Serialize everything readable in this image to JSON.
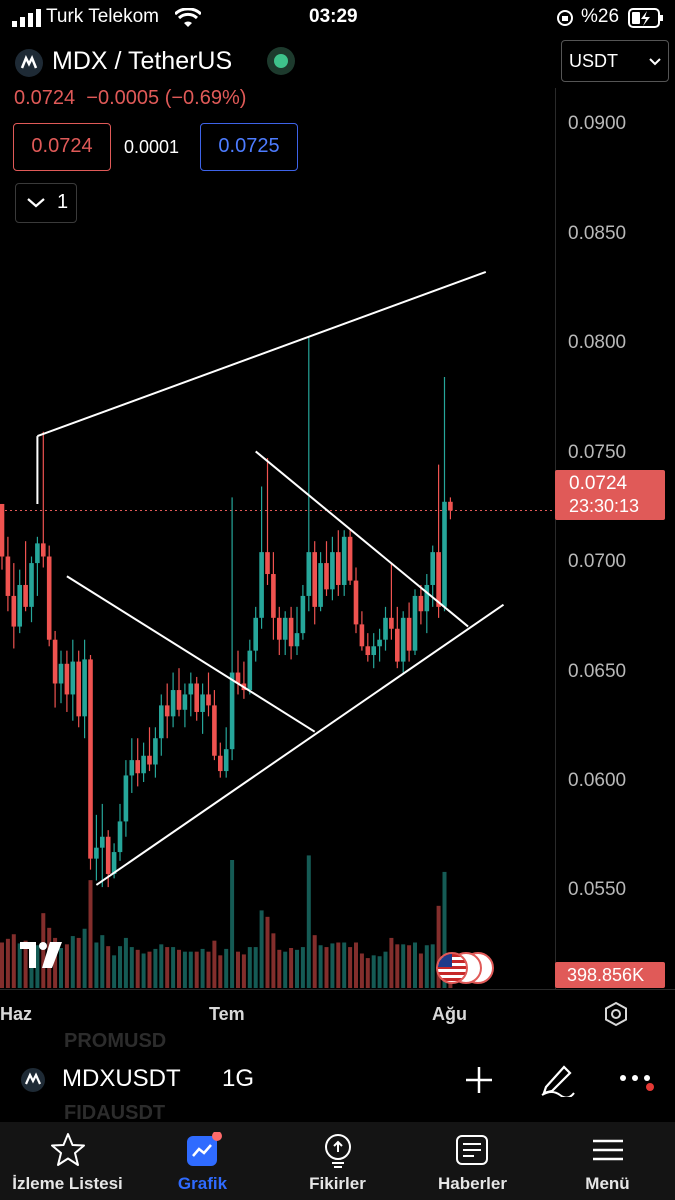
{
  "status": {
    "carrier": "Turk Telekom",
    "time": "03:29",
    "battery": "%26"
  },
  "header": {
    "pair": "MDX / TetherUS",
    "currency": "USDT",
    "last_price": "0.0724",
    "change": "−0.0005 (−0.69%)",
    "bid": "0.0724",
    "spread": "0.0001",
    "ask": "0.0725",
    "indicator_count": "1"
  },
  "chart": {
    "y_ticks": [
      "0.0900",
      "0.0850",
      "0.0800",
      "0.0750",
      "0.0700",
      "0.0650",
      "0.0600",
      "0.0550"
    ],
    "price_tag": "0.0724",
    "countdown": "23:30:13",
    "volume_tag": "398.856K",
    "x_ticks": [
      "Haz",
      "Tem",
      "Ağu"
    ],
    "colors": {
      "up": "#26a69a",
      "down": "#ef5350",
      "lines": "#ffffff"
    }
  },
  "chart_data": {
    "type": "candlestick",
    "symbol": "MDXUSDT",
    "interval": "1G",
    "ylim": [
      0.0505,
      0.0917
    ],
    "candles": [
      [
        0.0727,
        0.0727,
        0.0697,
        0.0703
      ],
      [
        0.0703,
        0.0712,
        0.0678,
        0.0685
      ],
      [
        0.0685,
        0.07,
        0.0661,
        0.0671
      ],
      [
        0.0671,
        0.0697,
        0.0668,
        0.069
      ],
      [
        0.069,
        0.071,
        0.0678,
        0.068
      ],
      [
        0.068,
        0.0703,
        0.0673,
        0.07
      ],
      [
        0.07,
        0.0712,
        0.0685,
        0.0709
      ],
      [
        0.0709,
        0.076,
        0.0698,
        0.0703
      ],
      [
        0.0703,
        0.0708,
        0.0662,
        0.0665
      ],
      [
        0.0665,
        0.0669,
        0.0634,
        0.0645
      ],
      [
        0.0645,
        0.066,
        0.0636,
        0.0654
      ],
      [
        0.0654,
        0.066,
        0.0632,
        0.064
      ],
      [
        0.064,
        0.0665,
        0.0628,
        0.0655
      ],
      [
        0.0655,
        0.066,
        0.0625,
        0.063
      ],
      [
        0.063,
        0.0665,
        0.062,
        0.0656
      ],
      [
        0.0656,
        0.0658,
        0.056,
        0.0565
      ],
      [
        0.0565,
        0.0585,
        0.0555,
        0.057
      ],
      [
        0.057,
        0.059,
        0.0552,
        0.0575
      ],
      [
        0.0575,
        0.0578,
        0.0552,
        0.0558
      ],
      [
        0.0558,
        0.0572,
        0.0556,
        0.0568
      ],
      [
        0.0568,
        0.059,
        0.0564,
        0.0582
      ],
      [
        0.0582,
        0.061,
        0.0575,
        0.0603
      ],
      [
        0.0603,
        0.062,
        0.0595,
        0.061
      ],
      [
        0.061,
        0.062,
        0.0598,
        0.0604
      ],
      [
        0.0604,
        0.0618,
        0.06,
        0.0612
      ],
      [
        0.0612,
        0.0625,
        0.0605,
        0.0608
      ],
      [
        0.0608,
        0.0625,
        0.0602,
        0.062
      ],
      [
        0.062,
        0.064,
        0.0612,
        0.0635
      ],
      [
        0.0635,
        0.0645,
        0.062,
        0.063
      ],
      [
        0.063,
        0.065,
        0.0625,
        0.0642
      ],
      [
        0.0642,
        0.0652,
        0.063,
        0.0633
      ],
      [
        0.0633,
        0.0645,
        0.0625,
        0.064
      ],
      [
        0.064,
        0.065,
        0.063,
        0.0645
      ],
      [
        0.0645,
        0.0648,
        0.0628,
        0.0632
      ],
      [
        0.0632,
        0.0645,
        0.0622,
        0.064
      ],
      [
        0.064,
        0.065,
        0.063,
        0.0635
      ],
      [
        0.0635,
        0.0642,
        0.061,
        0.0612
      ],
      [
        0.0612,
        0.0618,
        0.0602,
        0.0605
      ],
      [
        0.0605,
        0.0625,
        0.0602,
        0.0615
      ],
      [
        0.0615,
        0.073,
        0.061,
        0.065
      ],
      [
        0.065,
        0.066,
        0.064,
        0.0645
      ],
      [
        0.0645,
        0.0655,
        0.0638,
        0.0642
      ],
      [
        0.0642,
        0.0665,
        0.064,
        0.066
      ],
      [
        0.066,
        0.068,
        0.0655,
        0.0675
      ],
      [
        0.0675,
        0.0735,
        0.067,
        0.0705
      ],
      [
        0.0705,
        0.0748,
        0.069,
        0.0695
      ],
      [
        0.0695,
        0.0705,
        0.0665,
        0.0675
      ],
      [
        0.0675,
        0.068,
        0.0658,
        0.0665
      ],
      [
        0.0665,
        0.0678,
        0.0658,
        0.0675
      ],
      [
        0.0675,
        0.068,
        0.0656,
        0.0662
      ],
      [
        0.0662,
        0.068,
        0.0658,
        0.0668
      ],
      [
        0.0668,
        0.069,
        0.0665,
        0.0685
      ],
      [
        0.0685,
        0.0803,
        0.0678,
        0.0705
      ],
      [
        0.0705,
        0.071,
        0.0672,
        0.068
      ],
      [
        0.068,
        0.0705,
        0.0678,
        0.07
      ],
      [
        0.07,
        0.071,
        0.0685,
        0.0688
      ],
      [
        0.0688,
        0.0712,
        0.0683,
        0.0705
      ],
      [
        0.0705,
        0.0715,
        0.0685,
        0.069
      ],
      [
        0.069,
        0.0715,
        0.0685,
        0.0712
      ],
      [
        0.0712,
        0.0715,
        0.069,
        0.0692
      ],
      [
        0.0692,
        0.0698,
        0.0668,
        0.0672
      ],
      [
        0.0672,
        0.0678,
        0.066,
        0.0662
      ],
      [
        0.0662,
        0.0668,
        0.0655,
        0.0658
      ],
      [
        0.0658,
        0.0668,
        0.0652,
        0.0662
      ],
      [
        0.0662,
        0.067,
        0.0655,
        0.0665
      ],
      [
        0.0665,
        0.068,
        0.066,
        0.0675
      ],
      [
        0.0675,
        0.07,
        0.0665,
        0.067
      ],
      [
        0.067,
        0.068,
        0.0652,
        0.0655
      ],
      [
        0.0655,
        0.0678,
        0.065,
        0.0675
      ],
      [
        0.0675,
        0.0682,
        0.0655,
        0.066
      ],
      [
        0.066,
        0.0688,
        0.0658,
        0.0685
      ],
      [
        0.0685,
        0.069,
        0.0672,
        0.0678
      ],
      [
        0.0678,
        0.0695,
        0.0668,
        0.069
      ],
      [
        0.069,
        0.0708,
        0.068,
        0.0705
      ],
      [
        0.0705,
        0.0745,
        0.0675,
        0.068
      ],
      [
        0.068,
        0.0785,
        0.0678,
        0.0728
      ],
      [
        0.0728,
        0.073,
        0.072,
        0.0724
      ]
    ],
    "volume_note": "volume bars at bottom, last value 398.856K"
  },
  "toolbar": {
    "symbol": "MDXUSDT",
    "interval": "1G",
    "ghost_top": "PROMUSD",
    "ghost_bottom": "FIDAUSDT"
  },
  "tabs": [
    {
      "label": "İzleme Listesi",
      "icon": "star-icon"
    },
    {
      "label": "Grafik",
      "icon": "chart-icon"
    },
    {
      "label": "Fikirler",
      "icon": "lightbulb-icon"
    },
    {
      "label": "Haberler",
      "icon": "news-icon"
    },
    {
      "label": "Menü",
      "icon": "hamburger-icon"
    }
  ]
}
